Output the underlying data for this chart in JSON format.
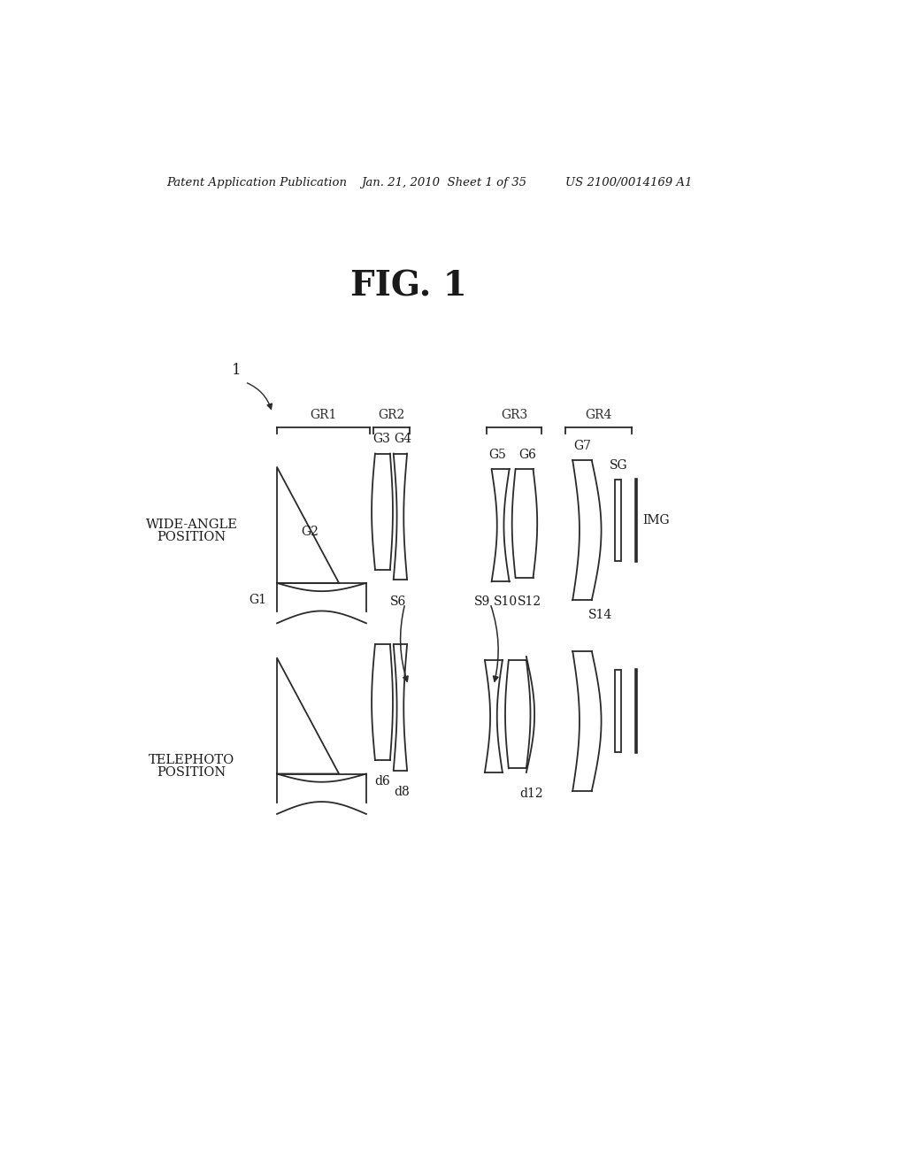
{
  "header_left": "Patent Application Publication",
  "header_mid": "Jan. 21, 2010  Sheet 1 of 35",
  "header_right": "US 2100/0014169 A1",
  "fig_title": "FIG. 1",
  "bg_color": "#ffffff",
  "line_color": "#2a2a2a",
  "text_color": "#1a1a1a",
  "header_line": false,
  "figsize": [
    10.24,
    13.2
  ],
  "dpi": 100
}
